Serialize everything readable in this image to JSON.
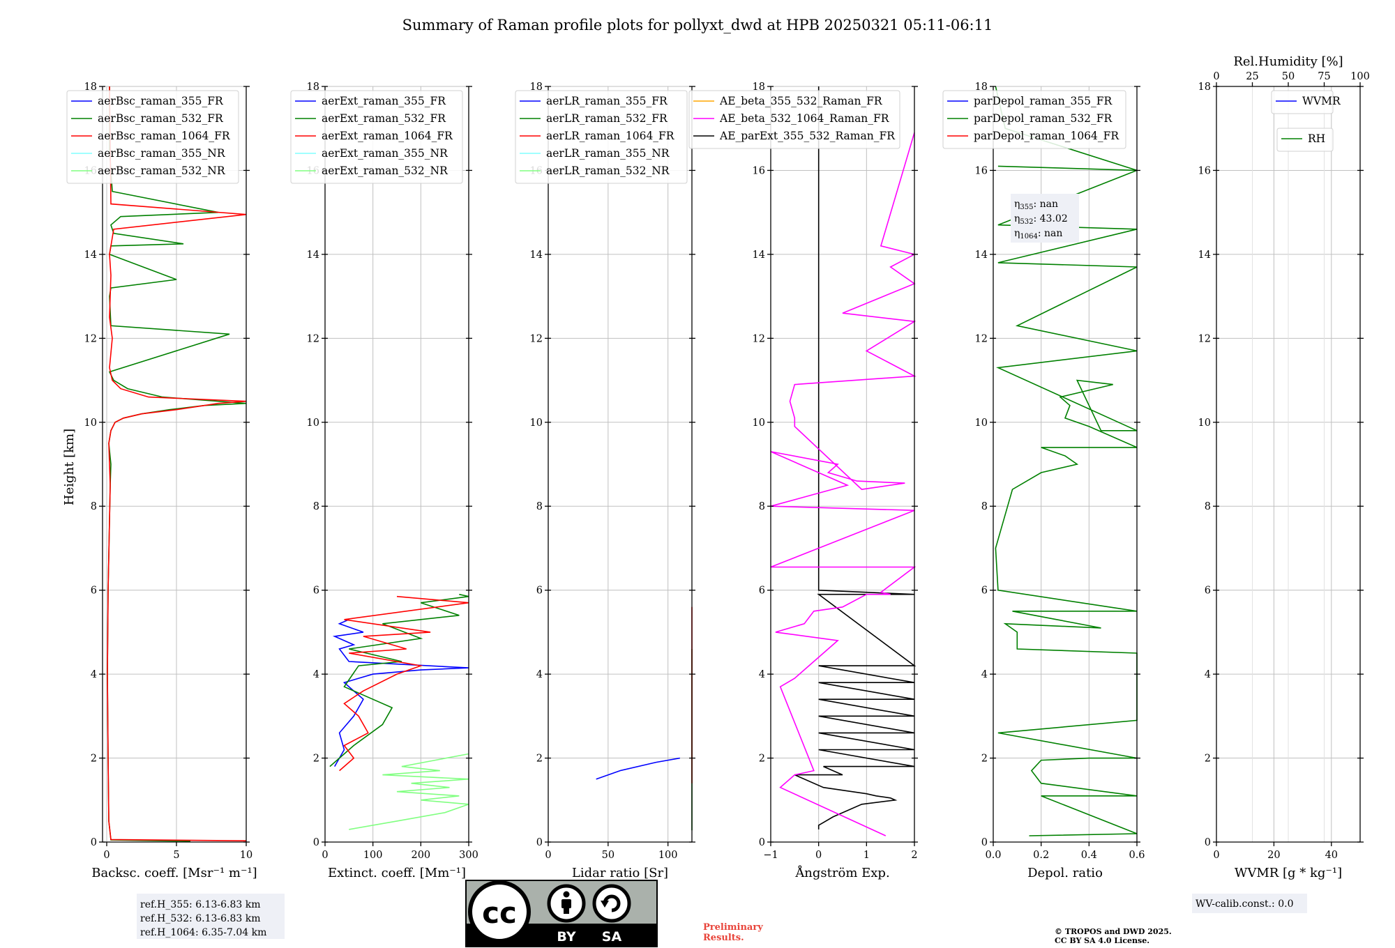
{
  "title": "Summary of Raman profile plots for pollyxt_dwd at HPB 20250321 05:11-06:11",
  "y_label": "Height [km]",
  "colors": {
    "c355": "#0000ff",
    "c532": "#008000",
    "c1064": "#ff0000",
    "c355nr": "#80ffff",
    "c532nr": "#80ff80",
    "ae1": "#ffa500",
    "ae2": "#ff00ff",
    "ae3": "#000000",
    "grid": "#c0c0c0"
  },
  "panels": [
    {
      "id": "bsc",
      "xlabel": "Backsc. coeff. [Msr⁻¹ m⁻¹]",
      "xlim": [
        -0.3,
        10
      ],
      "xticks": [
        "0",
        "5",
        "10"
      ],
      "xtick_values": [
        0,
        5,
        10
      ],
      "legend": [
        {
          "label": "aerBsc_raman_355_FR",
          "color": "#0000ff"
        },
        {
          "label": "aerBsc_raman_532_FR",
          "color": "#008000"
        },
        {
          "label": "aerBsc_raman_1064_FR",
          "color": "#ff0000"
        },
        {
          "label": "aerBsc_raman_355_NR",
          "color": "#80ffff"
        },
        {
          "label": "aerBsc_raman_532_NR",
          "color": "#80ff80"
        }
      ],
      "annotation": [
        "ref.H_355: 6.13-6.83 km",
        "ref.H_532: 6.13-6.83 km",
        "ref.H_1064: 6.35-7.04 km"
      ]
    },
    {
      "id": "ext",
      "xlabel": "Extinct. coeff. [Mm⁻¹]",
      "xlim": [
        0,
        300
      ],
      "xticks": [
        "0",
        "100",
        "200",
        "300"
      ],
      "xtick_values": [
        0,
        100,
        200,
        300
      ],
      "legend": [
        {
          "label": "aerExt_raman_355_FR",
          "color": "#0000ff"
        },
        {
          "label": "aerExt_raman_532_FR",
          "color": "#008000"
        },
        {
          "label": "aerExt_raman_1064_FR",
          "color": "#ff0000"
        },
        {
          "label": "aerExt_raman_355_NR",
          "color": "#80ffff"
        },
        {
          "label": "aerExt_raman_532_NR",
          "color": "#80ff80"
        }
      ]
    },
    {
      "id": "lr",
      "xlabel": "Lidar ratio [Sr]",
      "xlim": [
        0,
        120
      ],
      "xticks": [
        "0",
        "50",
        "100"
      ],
      "xtick_values": [
        0,
        50,
        100
      ],
      "legend": [
        {
          "label": "aerLR_raman_355_FR",
          "color": "#0000ff"
        },
        {
          "label": "aerLR_raman_532_FR",
          "color": "#008000"
        },
        {
          "label": "aerLR_raman_1064_FR",
          "color": "#ff0000"
        },
        {
          "label": "aerLR_raman_355_NR",
          "color": "#80ffff"
        },
        {
          "label": "aerLR_raman_532_NR",
          "color": "#80ff80"
        }
      ]
    },
    {
      "id": "ae",
      "xlabel": "Ångström Exp.",
      "xlim": [
        -1,
        2
      ],
      "xticks": [
        "−1",
        "0",
        "1",
        "2"
      ],
      "xtick_values": [
        -1,
        0,
        1,
        2
      ],
      "legend": [
        {
          "label": "AE_beta_355_532_Raman_FR",
          "color": "#ffa500"
        },
        {
          "label": "AE_beta_532_1064_Raman_FR",
          "color": "#ff00ff"
        },
        {
          "label": "AE_parExt_355_532_Raman_FR",
          "color": "#000000"
        }
      ]
    },
    {
      "id": "dep",
      "xlabel": "Depol. ratio",
      "xlim": [
        0,
        0.6
      ],
      "xticks": [
        "0.0",
        "0.2",
        "0.4",
        "0.6"
      ],
      "xtick_values": [
        0,
        0.2,
        0.4,
        0.6
      ],
      "legend": [
        {
          "label": "parDepol_raman_355_FR",
          "color": "#0000ff"
        },
        {
          "label": "parDepol_raman_532_FR",
          "color": "#008000"
        },
        {
          "label": "parDepol_raman_1064_FR",
          "color": "#ff0000"
        }
      ],
      "eta": [
        {
          "sym": "η",
          "sub": "355",
          "val": ": nan"
        },
        {
          "sym": "η",
          "sub": "532",
          "val": ": 43.02"
        },
        {
          "sym": "η",
          "sub": "1064",
          "val": ": nan"
        }
      ]
    },
    {
      "id": "wv",
      "xlabel": "WVMR [g * kg⁻¹]",
      "xlim": [
        0,
        50
      ],
      "xticks": [
        "0",
        "20",
        "40"
      ],
      "xtick_values": [
        0,
        20,
        40
      ],
      "top_label": "Rel.Humidity [%]",
      "top_ticks": [
        "0",
        "25",
        "50",
        "75",
        "100"
      ],
      "top_tick_values": [
        0,
        25,
        50,
        75,
        100
      ],
      "legend": [
        {
          "label": "WVMR",
          "color": "#0000ff"
        }
      ],
      "legend2": [
        {
          "label": "RH",
          "color": "#008000"
        }
      ],
      "annotation": [
        "WV-calib.const.: 0.0"
      ]
    }
  ],
  "y_ticks": [
    "0",
    "2",
    "4",
    "6",
    "8",
    "10",
    "12",
    "14",
    "16",
    "18"
  ],
  "y_tick_values": [
    0,
    2,
    4,
    6,
    8,
    10,
    12,
    14,
    16,
    18
  ],
  "cc_badge": {
    "cc": "cc",
    "by": "BY",
    "sa": "SA"
  },
  "preliminary": [
    "Preliminary",
    "Results."
  ],
  "copyright": [
    "© TROPOS and DWD 2025.",
    "CC BY SA 4.0 License."
  ],
  "chart_data": [
    {
      "type": "line",
      "title": "",
      "xlabel": "Backsc. coeff. [Msr⁻¹ m⁻¹]",
      "ylabel": "Height [km]",
      "xlim": [
        -0.3,
        10
      ],
      "ylim": [
        0,
        18
      ],
      "grid": true,
      "legend_position": "top-left",
      "series": [
        {
          "name": "aerBsc_raman_532_FR",
          "x": [
            6,
            0.3,
            0.15,
            0.1,
            0.05,
            0.1,
            0.25,
            0.3,
            0.15,
            0.3,
            0.6,
            1.2,
            2.5,
            4.5,
            7,
            10,
            4,
            1.5,
            0.5,
            0.2,
            8.8,
            0.3,
            0.2,
            0.3,
            5,
            0.2,
            0.3,
            5.5,
            0.5,
            0.3,
            1,
            8,
            0.4,
            0.2,
            0.2
          ],
          "y": [
            0.02,
            0.05,
            0.5,
            2,
            4,
            6,
            8.5,
            9,
            9.5,
            9.8,
            10,
            10.1,
            10.2,
            10.3,
            10.4,
            10.45,
            10.6,
            10.8,
            11,
            11.2,
            12.1,
            12.3,
            13,
            13.2,
            13.4,
            14,
            14.2,
            14.25,
            14.5,
            14.7,
            14.9,
            15.0,
            15.5,
            16.5,
            18
          ]
        },
        {
          "name": "aerBsc_raman_1064_FR",
          "x": [
            10,
            0.3,
            0.15,
            0.1,
            0.05,
            0.1,
            0.25,
            0.15,
            0.3,
            0.6,
            1.2,
            2.5,
            5,
            8,
            10,
            3,
            1,
            0.4,
            0.2,
            0.4,
            0.2,
            0.3,
            0.2,
            0.5,
            10,
            0.3,
            0.2
          ],
          "y": [
            0.03,
            0.06,
            0.5,
            2,
            4,
            6,
            8.5,
            9.5,
            9.8,
            10,
            10.1,
            10.2,
            10.3,
            10.45,
            10.5,
            10.6,
            10.8,
            11,
            11.3,
            12,
            12.5,
            13.5,
            14,
            14.6,
            14.95,
            15.2,
            18
          ]
        }
      ]
    },
    {
      "type": "line",
      "title": "",
      "xlabel": "Extinct. coeff. [Mm⁻¹]",
      "ylabel": "Height [km]",
      "xlim": [
        0,
        300
      ],
      "ylim": [
        0,
        6
      ],
      "grid": true,
      "legend_position": "top-left",
      "series": [
        {
          "name": "aerExt_raman_355_FR",
          "x": [
            20,
            40,
            30,
            60,
            80,
            40,
            100,
            200,
            300,
            50,
            30,
            60,
            20,
            80,
            30,
            50
          ],
          "y": [
            1.8,
            2.2,
            2.6,
            3,
            3.4,
            3.8,
            4.0,
            4.1,
            4.15,
            4.3,
            4.6,
            4.7,
            4.9,
            5.0,
            5.2,
            5.3
          ]
        },
        {
          "name": "aerExt_raman_532_FR",
          "x": [
            10,
            60,
            120,
            140,
            80,
            40,
            70,
            160,
            50,
            200,
            120,
            280,
            200,
            300,
            280
          ],
          "y": [
            1.8,
            2.3,
            2.8,
            3.2,
            3.5,
            3.7,
            4.2,
            4.3,
            4.6,
            4.85,
            5.2,
            5.4,
            5.7,
            5.85,
            5.9
          ]
        },
        {
          "name": "aerExt_raman_1064_FR",
          "x": [
            30,
            60,
            40,
            90,
            70,
            40,
            80,
            150,
            200,
            50,
            170,
            80,
            220,
            40,
            300,
            150
          ],
          "y": [
            1.7,
            2.0,
            2.3,
            2.6,
            3.0,
            3.3,
            3.6,
            4.0,
            4.2,
            4.5,
            4.6,
            4.9,
            5.0,
            5.3,
            5.7,
            5.85
          ]
        },
        {
          "name": "aerExt_raman_532_NR",
          "x": [
            50,
            150,
            250,
            300,
            200,
            280,
            150,
            260,
            180,
            300,
            120,
            240,
            160,
            300
          ],
          "y": [
            0.3,
            0.5,
            0.7,
            0.9,
            1.0,
            1.1,
            1.2,
            1.3,
            1.4,
            1.5,
            1.6,
            1.7,
            1.8,
            2.1
          ]
        }
      ]
    },
    {
      "type": "line",
      "title": "",
      "xlabel": "Lidar ratio [Sr]",
      "ylabel": "Height [km]",
      "xlim": [
        0,
        120
      ],
      "ylim": [
        0,
        6
      ],
      "grid": true,
      "legend_position": "top-left",
      "series": [
        {
          "name": "aerLR_raman_532_FR",
          "x": [
            120,
            120,
            120,
            120,
            120,
            120,
            120,
            120,
            120
          ],
          "y": [
            0.28,
            1.05,
            1.2,
            1.4,
            1.6,
            1.8,
            2.0,
            3.4,
            4.6
          ]
        },
        {
          "name": "aerLR_raman_1064_FR",
          "x": [
            120,
            120,
            120,
            120,
            120,
            120,
            120,
            120,
            120,
            120,
            120,
            120,
            120,
            120,
            120
          ],
          "y": [
            1.4,
            1.6,
            1.8,
            2.0,
            2.4,
            2.6,
            2.9,
            3.0,
            3.3,
            3.7,
            4.0,
            4.3,
            4.9,
            5.2,
            5.6
          ]
        },
        {
          "name": "aerLR_raman_355_FR",
          "x": [
            40,
            60,
            90,
            110
          ],
          "y": [
            1.5,
            1.7,
            1.9,
            2.0
          ]
        }
      ]
    },
    {
      "type": "line",
      "title": "",
      "xlabel": "Ångström Exp.",
      "ylabel": "Height [km]",
      "xlim": [
        -1,
        2
      ],
      "ylim": [
        0,
        18
      ],
      "grid": true,
      "legend_position": "top-center",
      "series": [
        {
          "name": "AE_parExt_355_532_Raman_FR",
          "x": [
            0,
            0,
            0.3,
            0.9,
            1.6,
            1.5,
            1.2,
            1.0,
            0.1,
            -0.5,
            0.5,
            0.1,
            2,
            0,
            2,
            0,
            2,
            0,
            2,
            0,
            2,
            0,
            2,
            0,
            2,
            0,
            2,
            0,
            0
          ],
          "y": [
            0.3,
            0.4,
            0.6,
            0.9,
            1.0,
            1.05,
            1.1,
            1.15,
            1.3,
            1.6,
            1.6,
            1.8,
            1.8,
            2.2,
            2.2,
            2.6,
            2.6,
            3.0,
            3.0,
            3.4,
            3.4,
            3.8,
            3.8,
            4.2,
            4.2,
            5.9,
            5.9,
            6.0,
            18
          ]
        },
        {
          "name": "AE_beta_532_1064_Raman_FR",
          "x": [
            1.4,
            -0.8,
            -0.5,
            -0.1,
            -0.8,
            -0.5,
            0.4,
            -0.9,
            -0.3,
            -0.1,
            0.5,
            1.0,
            1.5,
            1.3,
            2,
            -1,
            2,
            -1,
            0.6,
            -1,
            -1,
            0.4,
            0.2,
            0.8,
            1.8,
            0.9,
            -0.5,
            -0.5,
            -0.6,
            -0.5,
            2,
            1,
            2,
            0.5,
            2,
            1.5,
            2,
            1.3,
            2
          ],
          "y": [
            0.15,
            1.3,
            1.6,
            1.7,
            3.7,
            3.9,
            4.8,
            5.0,
            5.2,
            5.5,
            5.6,
            5.9,
            5.9,
            5.95,
            6.55,
            6.55,
            7.9,
            8.0,
            8.5,
            9.3,
            9.3,
            9.0,
            8.8,
            8.6,
            8.55,
            8.4,
            9.9,
            10.1,
            10.5,
            10.9,
            11.1,
            11.7,
            12.4,
            12.6,
            13.3,
            13.7,
            14.0,
            14.2,
            16.9
          ]
        }
      ]
    },
    {
      "type": "line",
      "title": "",
      "xlabel": "Depol. ratio",
      "ylabel": "Height [km]",
      "xlim": [
        0,
        0.6
      ],
      "ylim": [
        0,
        18
      ],
      "grid": true,
      "legend_position": "top-left",
      "series": [
        {
          "name": "parDepol_raman_532_FR",
          "x": [
            0.15,
            0.6,
            0.2,
            0.6,
            0.2,
            0.16,
            0.2,
            0.4,
            0.6,
            0.02,
            0.6,
            0.6,
            0.6,
            0.6,
            0.6,
            0.6,
            0.1,
            0.1,
            0.05,
            0.45,
            0.08,
            0.6,
            0.02,
            0.01,
            0.08,
            0.2,
            0.35,
            0.3,
            0.2,
            0.6,
            0.4,
            0.3,
            0.32,
            0.28,
            0.5,
            0.35,
            0.45,
            0.6,
            0.02,
            0.6,
            0.1,
            0.6,
            0.02,
            0.6,
            0.02,
            0.6,
            0.02,
            0.6,
            0.05,
            0.01
          ],
          "y": [
            0.15,
            0.2,
            1.1,
            1.1,
            1.4,
            1.7,
            1.95,
            2.0,
            2.0,
            2.6,
            2.9,
            3.2,
            3.5,
            3.8,
            4.1,
            4.5,
            4.6,
            5.0,
            5.2,
            5.1,
            5.5,
            5.5,
            6.0,
            7.0,
            8.4,
            8.8,
            9.0,
            9.2,
            9.4,
            9.4,
            9.9,
            10.1,
            10.4,
            10.6,
            10.9,
            11.0,
            9.8,
            9.8,
            11.3,
            11.7,
            12.3,
            13.7,
            13.8,
            14.6,
            14.7,
            16.0,
            16.1,
            16.0,
            17.0,
            18
          ]
        }
      ]
    },
    {
      "type": "line",
      "title": "",
      "xlabel": "WVMR [g * kg⁻¹]",
      "ylabel": "Height [km]",
      "xlim": [
        0,
        50
      ],
      "ylim": [
        0,
        18
      ],
      "grid": true,
      "legend_position": "top-right",
      "secondary_x": {
        "label": "Rel.Humidity [%]",
        "lim": [
          0,
          100
        ]
      },
      "series": []
    }
  ]
}
